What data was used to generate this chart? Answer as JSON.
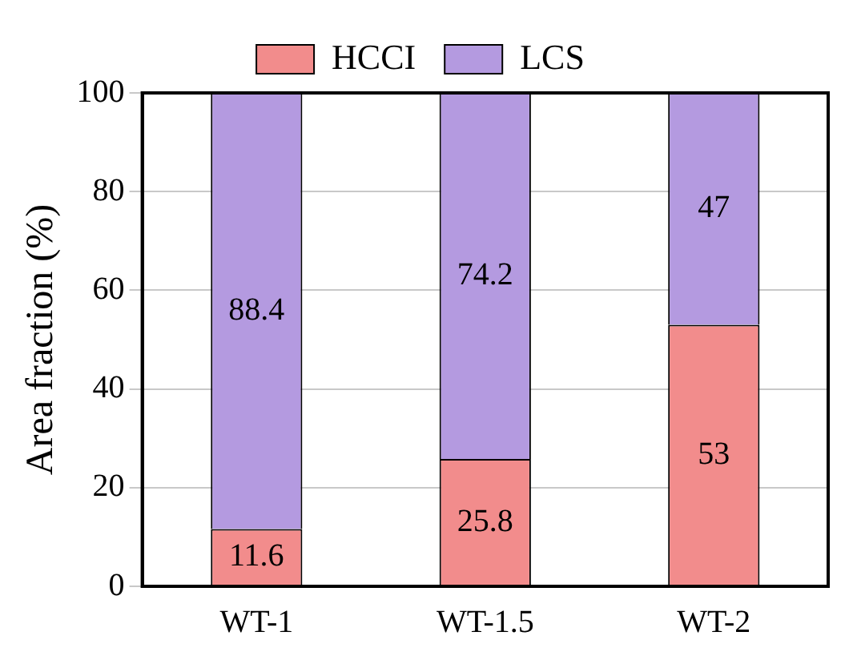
{
  "chart_data": {
    "type": "bar",
    "ylabel": "Area fraction (%)",
    "categories": [
      "WT-1",
      "WT-1.5",
      "WT-2"
    ],
    "series": [
      {
        "name": "HCCI",
        "color": "#f28c8c",
        "values": [
          11.6,
          25.8,
          53
        ]
      },
      {
        "name": "LCS",
        "color": "#b49ae0",
        "values": [
          88.4,
          74.2,
          47
        ]
      }
    ],
    "stacked": true,
    "ylim": [
      0,
      100
    ],
    "yticks": [
      0,
      20,
      40,
      60,
      80,
      100
    ],
    "grid": "y",
    "legend": "top",
    "data_labels": true
  }
}
